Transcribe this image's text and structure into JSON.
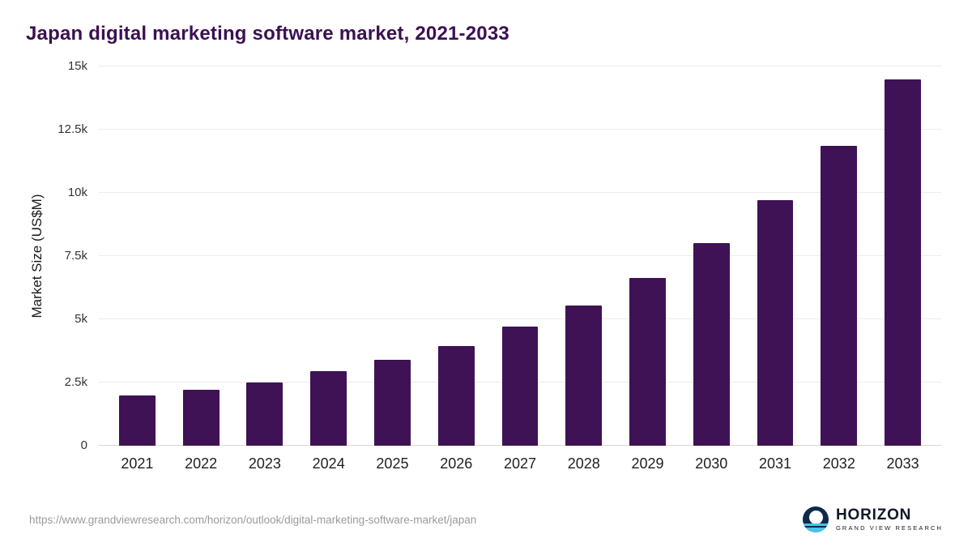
{
  "title": "Japan digital marketing software market, 2021-2033",
  "chart_data": {
    "type": "bar",
    "title": "Japan digital marketing software market, 2021-2033",
    "categories": [
      "2021",
      "2022",
      "2023",
      "2024",
      "2025",
      "2026",
      "2027",
      "2028",
      "2029",
      "2030",
      "2031",
      "2032",
      "2033"
    ],
    "values": [
      2000,
      2200,
      2500,
      2950,
      3400,
      3950,
      4700,
      5550,
      6650,
      8000,
      9700,
      11850,
      14500
    ],
    "xlabel": "",
    "ylabel": "Market Size (US$M)",
    "ylim": [
      0,
      15000
    ],
    "yticks": [
      {
        "value": 0,
        "label": "0"
      },
      {
        "value": 2500,
        "label": "2.5k"
      },
      {
        "value": 5000,
        "label": "5k"
      },
      {
        "value": 7500,
        "label": "7.5k"
      },
      {
        "value": 10000,
        "label": "10k"
      },
      {
        "value": 12500,
        "label": "12.5k"
      },
      {
        "value": 15000,
        "label": "15k"
      }
    ],
    "bar_color": "#3e1254",
    "grid": "horizontal",
    "legend_position": "none"
  },
  "footer": {
    "source_url": "https://www.grandviewresearch.com/horizon/outlook/digital-marketing-software-market/japan",
    "logo": {
      "name": "HORIZON",
      "subtitle": "GRAND VIEW RESEARCH"
    }
  },
  "colors": {
    "title": "#3b1053",
    "bar": "#3e1254",
    "gridline": "#ebebeb",
    "logo_navy": "#0e2a47",
    "logo_teal": "#49c3e8"
  }
}
